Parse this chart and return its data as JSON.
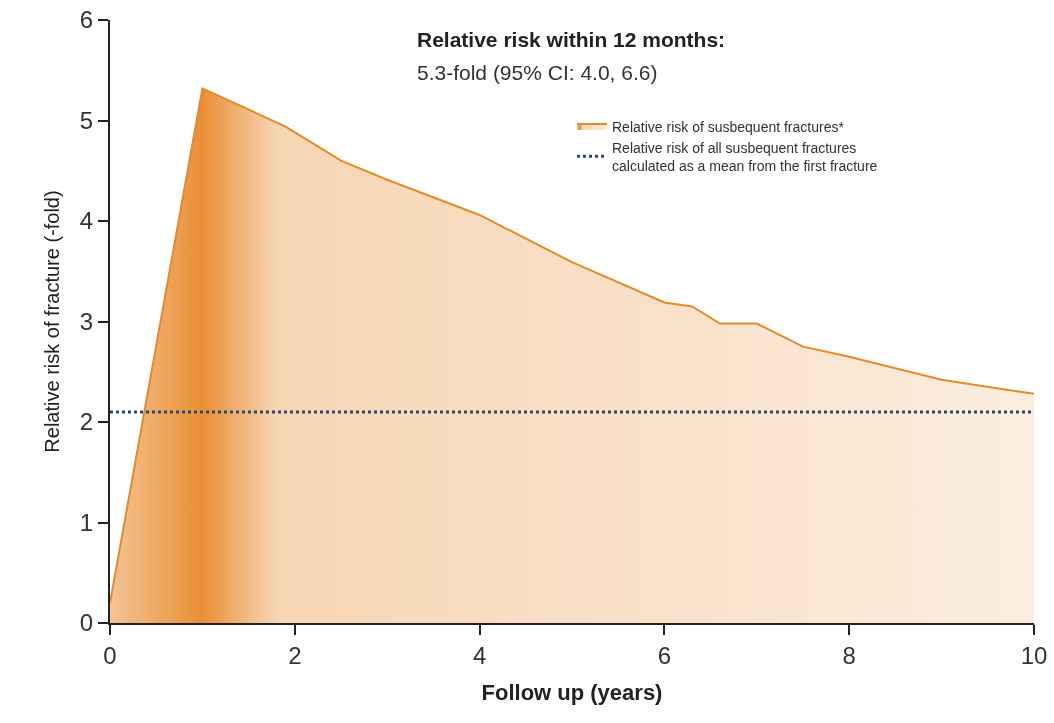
{
  "chart_data": {
    "type": "area",
    "title": "Relative risk within 12 months:",
    "subtitle": "5.3-fold (95% CI: 4.0, 6.6)",
    "xlabel": "Follow up (years)",
    "ylabel": "Relative risk of fracture (-fold)",
    "x": [
      0,
      1,
      1.9,
      2.5,
      3,
      4,
      5,
      6,
      6.3,
      6.6,
      7,
      7.5,
      8,
      9,
      10
    ],
    "series": [
      {
        "name": "Relative risk of susbequent fractures*",
        "color": "#e8892a",
        "values": [
          0.2,
          5.32,
          4.94,
          4.6,
          4.41,
          4.06,
          3.59,
          3.19,
          3.15,
          2.98,
          2.98,
          2.75,
          2.65,
          2.42,
          2.28
        ]
      }
    ],
    "ref_lines": [
      {
        "axis": "y",
        "value": 2.1,
        "label": "Relative risk of all susbequent fractures\ncalculated as a mean from the first fracture",
        "color": "#2b4a6b",
        "line_style": "dotted"
      }
    ],
    "xlim": [
      0,
      10
    ],
    "xticks": [
      0,
      2,
      4,
      6,
      8,
      10
    ],
    "ylim": [
      0,
      6
    ],
    "yticks": [
      0,
      1,
      2,
      3,
      4,
      5,
      6
    ],
    "grid": false,
    "legend": "top right",
    "marker": "none",
    "line_style": "solid"
  }
}
